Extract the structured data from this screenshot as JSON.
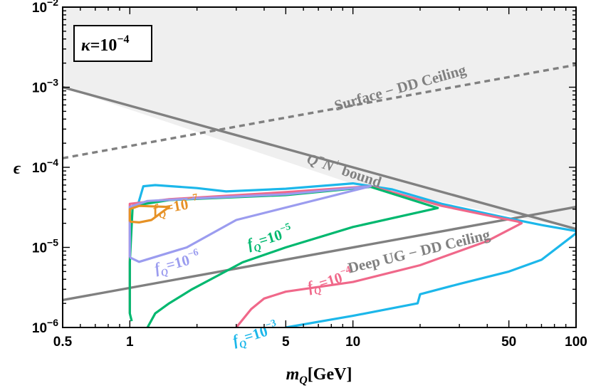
{
  "chart_data": {
    "type": "line",
    "xscale": "log",
    "yscale": "log",
    "xlim": [
      0.5,
      100
    ],
    "ylim": [
      1e-06,
      0.01
    ],
    "grid": false,
    "xlabel": {
      "base": "m",
      "sub": "Q",
      "unit": "[GeV]"
    },
    "ylabel": "ϵ",
    "x_ticks": [
      {
        "value": 0.5,
        "label": "0.5"
      },
      {
        "value": 1,
        "label": "1"
      },
      {
        "value": 5,
        "label": "5"
      },
      {
        "value": 10,
        "label": "10"
      },
      {
        "value": 50,
        "label": "50"
      },
      {
        "value": 100,
        "label": "100"
      }
    ],
    "y_ticks": [
      {
        "value": 1e-06,
        "base": "10",
        "exp": "−6"
      },
      {
        "value": 1e-05,
        "base": "10",
        "exp": "−5"
      },
      {
        "value": 0.0001,
        "base": "10",
        "exp": "−4"
      },
      {
        "value": 0.001,
        "base": "10",
        "exp": "−3"
      },
      {
        "value": 0.01,
        "base": "10",
        "exp": "−2"
      }
    ],
    "parameter_box": {
      "symbol": "κ",
      "eq": "=10",
      "exp": "−4"
    },
    "shaded_region": {
      "color": "#efefef",
      "polygon": [
        [
          0.5,
          0.01
        ],
        [
          100,
          0.01
        ],
        [
          100,
          1.7e-05
        ],
        [
          10,
          6.2e-05
        ],
        [
          0.5,
          0.001
        ]
      ]
    },
    "series": [
      {
        "label": "Surface − DD Ceiling",
        "color": "#808080",
        "dashed": true,
        "points": [
          [
            0.5,
            0.00013
          ],
          [
            100,
            0.0019
          ]
        ],
        "label_at": [
          16.5,
          0.00086
        ],
        "label_angle": -15.7,
        "label_size": 21
      },
      {
        "label_main": "Q",
        "label_sup1": "−",
        "label_mid": "N",
        "label_sup2": "+",
        "label_tail": " bound",
        "color": "#808080",
        "points": [
          [
            0.5,
            0.001
          ],
          [
            100,
            1.7e-05
          ]
        ],
        "label_at": [
          9.0,
          8e-05
        ],
        "label_angle": 18.5,
        "label_size": 21
      },
      {
        "label": "Deep UG − DD Ceiling",
        "color": "#808080",
        "points": [
          [
            0.5,
            2.2e-06
          ],
          [
            100,
            3.2e-05
          ]
        ],
        "label_at": [
          20.0,
          7.8e-06
        ],
        "label_angle": -13.6,
        "label_size": 21
      },
      {
        "name": "f_Q=10^-3",
        "base": "f",
        "sub": "Q",
        "eq": "=10",
        "exp": "−3",
        "color": "#1cb7ea",
        "label_at": [
          3.7,
          7.2e-07
        ],
        "label_angle": -17,
        "label_size": 21,
        "points": [
          [
            1.08,
            3.2e-05
          ],
          [
            1.15,
            5.8e-05
          ],
          [
            1.3,
            6e-05
          ],
          [
            2,
            5.5e-05
          ],
          [
            2.7,
            5e-05
          ],
          [
            5,
            5.4e-05
          ],
          [
            10,
            6.3e-05
          ],
          [
            15,
            5.3e-05
          ],
          [
            25,
            3.5e-05
          ],
          [
            50,
            2.3e-05
          ],
          [
            70,
            1.9e-05
          ],
          [
            100,
            1.6e-05
          ],
          [
            100,
            1.5e-05
          ],
          [
            70,
            7e-06
          ],
          [
            50,
            5e-06
          ],
          [
            30,
            3.5e-06
          ],
          [
            20,
            2.6e-06
          ],
          [
            19.5,
            2e-06
          ],
          [
            10,
            1.4e-06
          ],
          [
            5,
            1e-06
          ]
        ]
      },
      {
        "name": "f_Q=10^-4",
        "base": "f",
        "sub": "Q",
        "eq": "=10",
        "exp": "−4",
        "color": "#f0688a",
        "label_at": [
          8.0,
          3.35e-06
        ],
        "label_angle": -17,
        "label_size": 21,
        "points": [
          [
            1,
            1.5e-06
          ],
          [
            1,
            3.5e-05
          ],
          [
            1.1,
            3.6e-05
          ],
          [
            1.5,
            4e-05
          ],
          [
            5,
            4.9e-05
          ],
          [
            12,
            5.8e-05
          ],
          [
            25,
            3.3e-05
          ],
          [
            55,
            2.1e-05
          ],
          [
            57,
            2e-05
          ],
          [
            40,
            1.2e-05
          ],
          [
            20,
            6e-06
          ],
          [
            10,
            3.7e-06
          ],
          [
            5,
            2.8e-06
          ],
          [
            4,
            2.3e-06
          ],
          [
            3.5,
            1.7e-06
          ],
          [
            3,
            1e-06
          ]
        ]
      },
      {
        "name": "f_Q=10^-5",
        "base": "f",
        "sub": "Q",
        "eq": "=10",
        "exp": "−5",
        "color": "#00b86f",
        "label_at": [
          4.3,
          1.15e-05
        ],
        "label_angle": -17,
        "label_size": 21,
        "points": [
          [
            1.02,
            1.2e-06
          ],
          [
            1.0,
            1.5e-06
          ],
          [
            1.0,
            6.5e-06
          ],
          [
            1.03,
            3.3e-05
          ],
          [
            1.5,
            3.9e-05
          ],
          [
            5,
            4.5e-05
          ],
          [
            12,
            5.7e-05
          ],
          [
            24,
            3.1e-05
          ],
          [
            10,
            1.8e-05
          ],
          [
            5,
            1e-05
          ],
          [
            3.2,
            6.5e-06
          ],
          [
            2.5,
            4.5e-06
          ],
          [
            1.9,
            3e-06
          ],
          [
            1.5,
            2e-06
          ],
          [
            1.3,
            1.5e-06
          ],
          [
            1.2,
            1e-06
          ]
        ]
      },
      {
        "name": "f_Q=10^-6",
        "base": "f",
        "sub": "Q",
        "eq": "=10",
        "exp": "−6",
        "color": "#9b9cef",
        "label_at": [
          1.65,
          5.6e-06
        ],
        "label_angle": -15,
        "label_size": 21,
        "points": [
          [
            1.0,
            7.5e-06
          ],
          [
            1.0,
            3.2e-05
          ],
          [
            1.2,
            3.8e-05
          ],
          [
            2,
            4.1e-05
          ],
          [
            5,
            4.6e-05
          ],
          [
            10,
            5.5e-05
          ],
          [
            12,
            5.8e-05
          ],
          [
            3,
            2.2e-05
          ],
          [
            1.8,
            1e-05
          ],
          [
            1.1,
            6.6e-06
          ],
          [
            1.0,
            7.5e-06
          ]
        ]
      },
      {
        "name": "f_Q=10^-7",
        "base": "f",
        "sub": "Q",
        "eq": "=10",
        "exp": "−7",
        "color": "#e69125",
        "label_at": [
          1.62,
          2.85e-05
        ],
        "label_angle": -10,
        "label_size": 21,
        "points": [
          [
            1.0,
            2.1e-05
          ],
          [
            1.0,
            3e-05
          ],
          [
            1.1,
            3.3e-05
          ],
          [
            1.5,
            3.2e-05
          ],
          [
            1.25,
            2.2e-05
          ],
          [
            1.1,
            2.05e-05
          ],
          [
            1.0,
            2.1e-05
          ]
        ]
      }
    ]
  }
}
